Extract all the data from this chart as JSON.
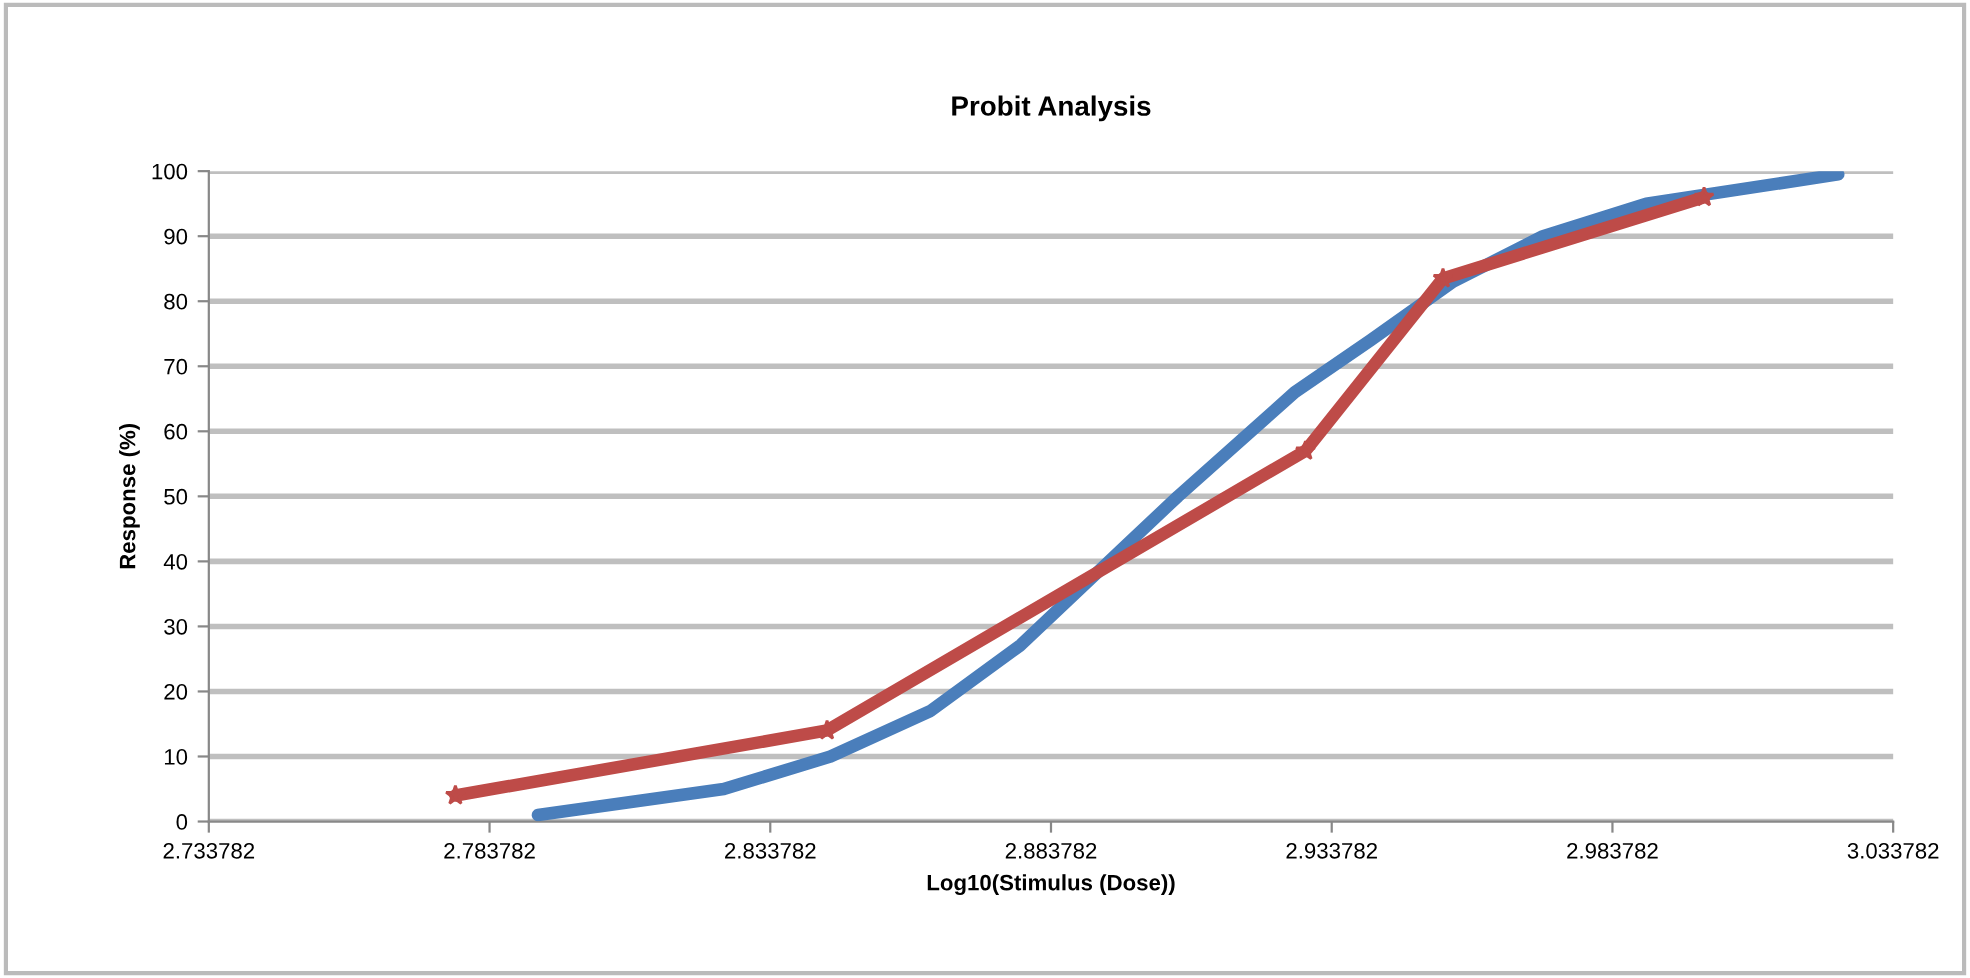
{
  "chart_data": {
    "type": "line",
    "title": "Probit Analysis",
    "xlabel": "Log10(Stimulus (Dose))",
    "ylabel": "Response (%)",
    "series": [
      {
        "color": "#4a7ebb",
        "marker": "none",
        "x": [
          2.7924,
          2.8255,
          2.8445,
          2.8623,
          2.8782,
          2.8978,
          2.9064,
          2.9272,
          2.9407,
          2.9554,
          2.9714,
          2.9898,
          3.024
        ],
        "values": [
          1,
          5,
          10,
          17,
          27,
          43,
          50,
          66,
          74,
          83,
          90,
          95,
          99.5
        ]
      },
      {
        "color": "#be4b48",
        "marker": "star",
        "x": [
          2.7777,
          2.8439,
          2.9291,
          2.9536,
          3.0001
        ],
        "values": [
          4,
          14,
          57,
          83.5,
          96
        ]
      }
    ],
    "xlim": [
      2.733782,
      3.033782
    ],
    "xticks": [
      2.733782,
      2.783782,
      2.833782,
      2.883782,
      2.933782,
      2.983782,
      3.033782
    ],
    "ylim": [
      0,
      100
    ],
    "yticks": [
      0,
      10,
      20,
      30,
      40,
      50,
      60,
      70,
      80,
      90,
      100
    ],
    "grid": "y",
    "legend": false,
    "line_style": "solid"
  }
}
